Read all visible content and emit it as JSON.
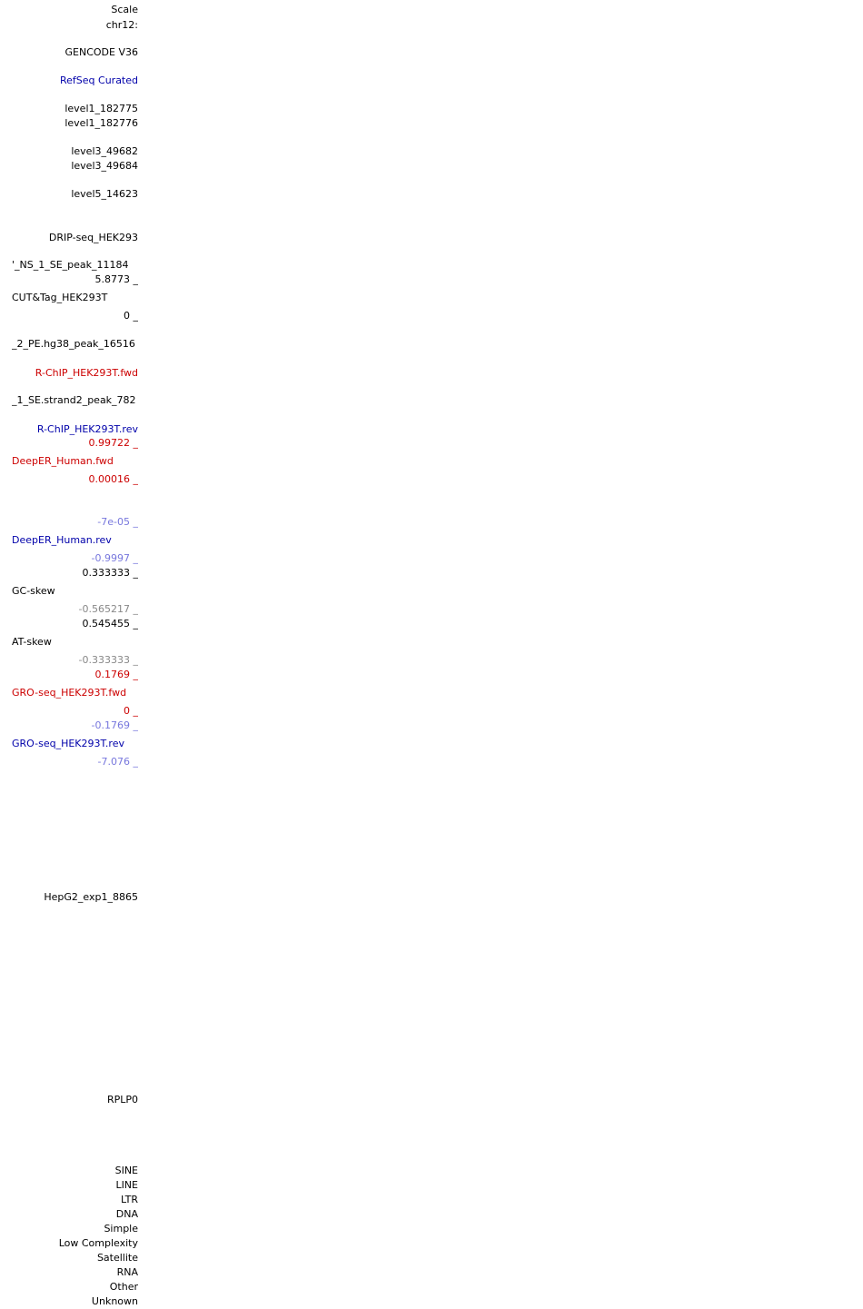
{
  "colors": {
    "black": "#000000",
    "red": "#cc0000",
    "blue": "#0000aa",
    "light_blue": "#7777dd",
    "grey": "#888888"
  },
  "labels": {
    "scale": "Scale",
    "chrom": "chr12:",
    "gencode": "GENCODE V36",
    "refseq": "RefSeq Curated",
    "level1_a": "level1_182775",
    "level1_b": "level1_182776",
    "level3_a": "level3_49682",
    "level3_b": "level3_49684",
    "level5": "level5_14623",
    "drip": "DRIP-seq_HEK293",
    "ns_peak": "'_NS_1_SE_peak_11184",
    "cuttag_max": "5.8773 _",
    "cuttag": "CUT&Tag_HEK293T",
    "cuttag_min": "0 _",
    "pe_peak": "_2_PE.hg38_peak_16516",
    "rchip_fwd": "R-ChIP_HEK293T.fwd",
    "strand2_peak": "_1_SE.strand2_peak_782",
    "rchip_rev": "R-ChIP_HEK293T.rev",
    "deeper_fwd_max": "0.99722 _",
    "deeper_fwd": "DeepER_Human.fwd",
    "deeper_fwd_min": "0.00016 _",
    "deeper_rev_max": "-7e-05 _",
    "deeper_rev": "DeepER_Human.rev",
    "deeper_rev_min": "-0.9997 _",
    "gc_max": "0.333333 _",
    "gc": "GC-skew",
    "gc_min": "-0.565217 _",
    "at_max": "0.545455 _",
    "at": "AT-skew",
    "at_min": "-0.333333 _",
    "gro_fwd_max": "0.1769 _",
    "gro_fwd": "GRO-seq_HEK293T.fwd",
    "gro_fwd_min": "0 _",
    "gro_rev_max": "-0.1769 _",
    "gro_rev": "GRO-seq_HEK293T.rev",
    "gro_rev_min": "-7.076 _",
    "hepg2": "HepG2_exp1_8865",
    "rplp0": "RPLP0"
  },
  "repeat_classes": [
    "SINE",
    "LINE",
    "LTR",
    "DNA",
    "Simple",
    "Low Complexity",
    "Satellite",
    "RNA",
    "Other",
    "Unknown"
  ]
}
